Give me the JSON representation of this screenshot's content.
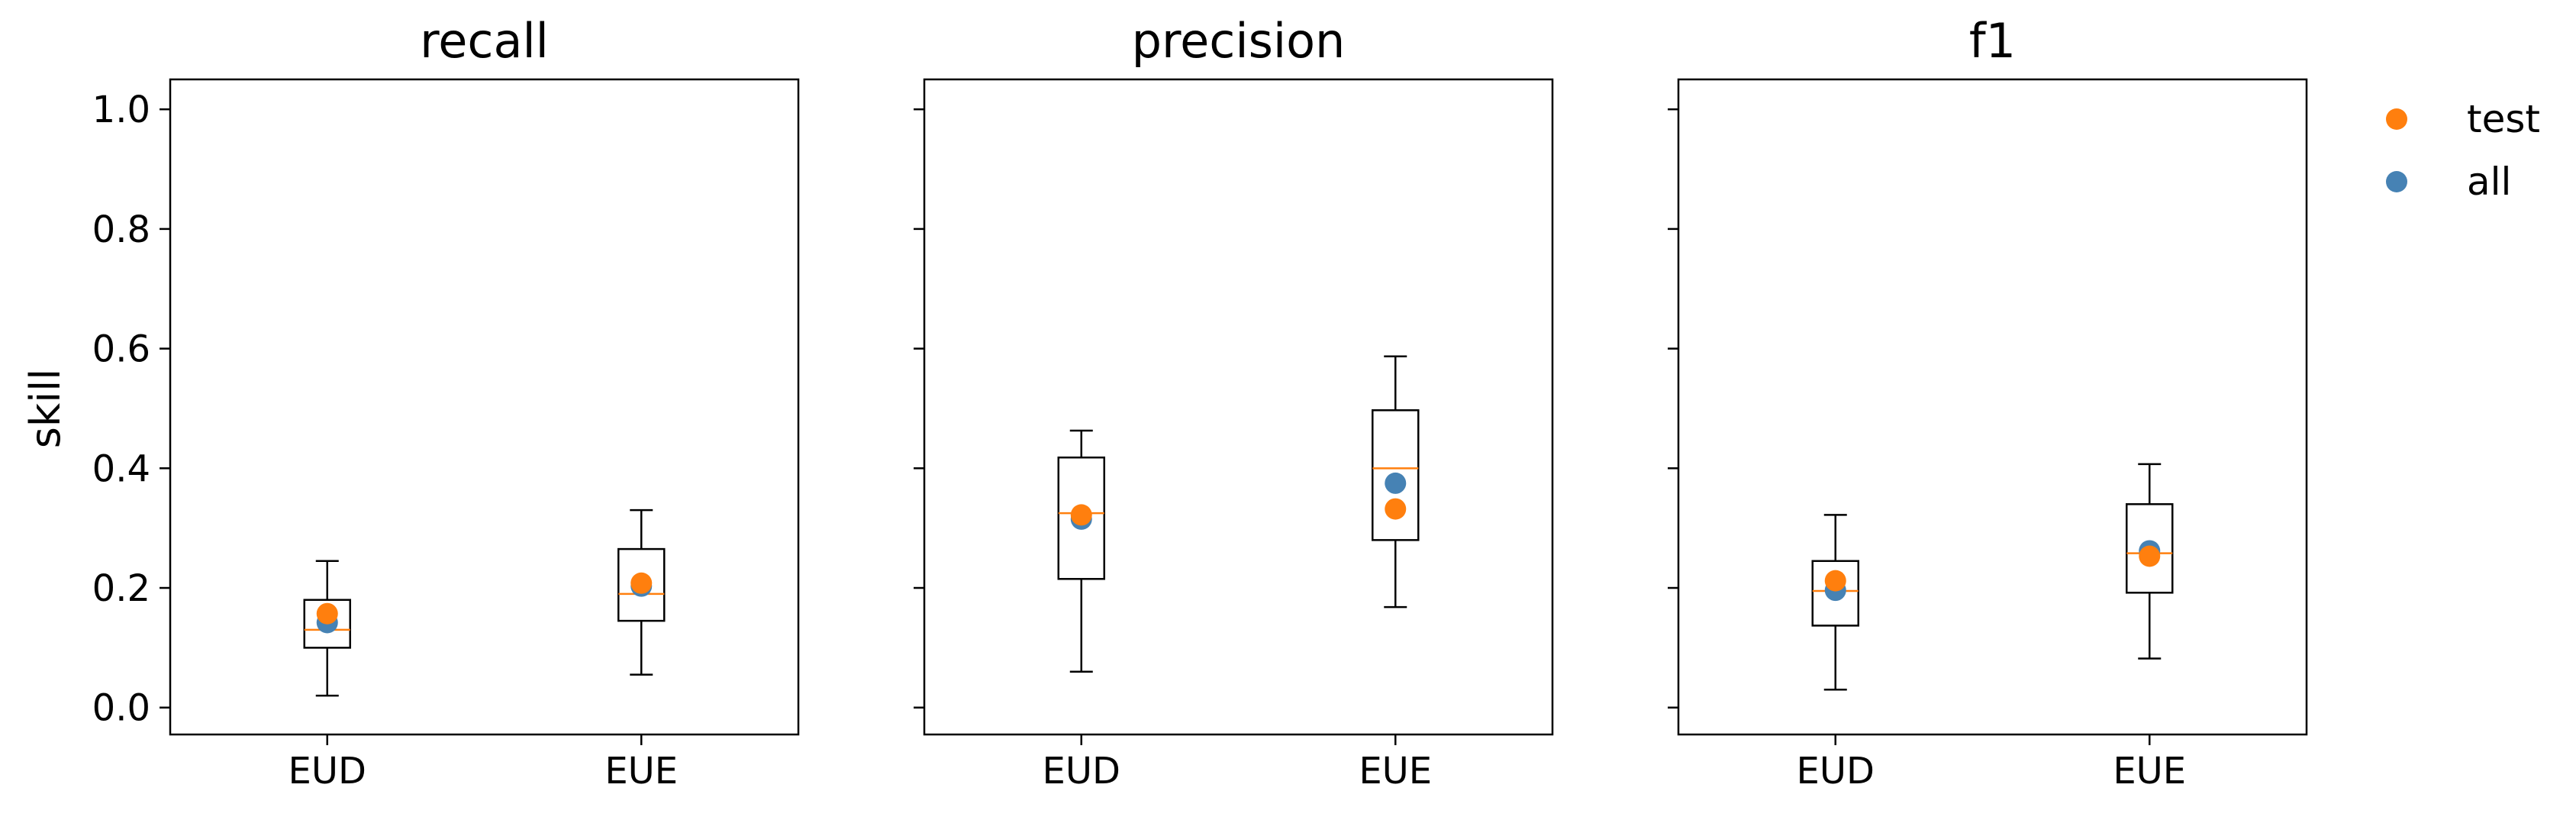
{
  "chart_data": {
    "type": "box",
    "ylabel": "skill",
    "ylim": [
      -0.045,
      1.05
    ],
    "yticks": [
      "0.0",
      "0.2",
      "0.4",
      "0.6",
      "0.8",
      "1.0"
    ],
    "ytick_values": [
      0.0,
      0.2,
      0.4,
      0.6,
      0.8,
      1.0
    ],
    "categories": [
      "EUD",
      "EUE"
    ],
    "legend": {
      "placement": "outside-right",
      "entries": [
        {
          "name": "test",
          "color": "#ff7f0e"
        },
        {
          "name": "all",
          "color": "#4682b4"
        }
      ]
    },
    "colors": {
      "median": "#ff7f0e",
      "box": "#000000"
    },
    "panels": [
      {
        "title": "recall",
        "boxes": [
          {
            "category": "EUD",
            "whisker_low": 0.02,
            "q1": 0.1,
            "median": 0.13,
            "q3": 0.18,
            "whisker_high": 0.245
          },
          {
            "category": "EUE",
            "whisker_low": 0.055,
            "q1": 0.145,
            "median": 0.19,
            "q3": 0.265,
            "whisker_high": 0.33
          }
        ],
        "points": {
          "test": [
            {
              "category": "EUD",
              "value": 0.157
            },
            {
              "category": "EUE",
              "value": 0.208
            }
          ],
          "all": [
            {
              "category": "EUD",
              "value": 0.142
            },
            {
              "category": "EUE",
              "value": 0.203
            }
          ]
        }
      },
      {
        "title": "precision",
        "boxes": [
          {
            "category": "EUD",
            "whisker_low": 0.06,
            "q1": 0.215,
            "median": 0.325,
            "q3": 0.418,
            "whisker_high": 0.463
          },
          {
            "category": "EUE",
            "whisker_low": 0.168,
            "q1": 0.28,
            "median": 0.4,
            "q3": 0.497,
            "whisker_high": 0.587
          }
        ],
        "points": {
          "test": [
            {
              "category": "EUD",
              "value": 0.322
            },
            {
              "category": "EUE",
              "value": 0.332
            }
          ],
          "all": [
            {
              "category": "EUD",
              "value": 0.315
            },
            {
              "category": "EUE",
              "value": 0.375
            }
          ]
        }
      },
      {
        "title": "f1",
        "boxes": [
          {
            "category": "EUD",
            "whisker_low": 0.03,
            "q1": 0.137,
            "median": 0.195,
            "q3": 0.245,
            "whisker_high": 0.322
          },
          {
            "category": "EUE",
            "whisker_low": 0.082,
            "q1": 0.192,
            "median": 0.258,
            "q3": 0.34,
            "whisker_high": 0.407
          }
        ],
        "points": {
          "test": [
            {
              "category": "EUD",
              "value": 0.212
            },
            {
              "category": "EUE",
              "value": 0.253
            }
          ],
          "all": [
            {
              "category": "EUD",
              "value": 0.196
            },
            {
              "category": "EUE",
              "value": 0.262
            }
          ]
        }
      }
    ]
  }
}
